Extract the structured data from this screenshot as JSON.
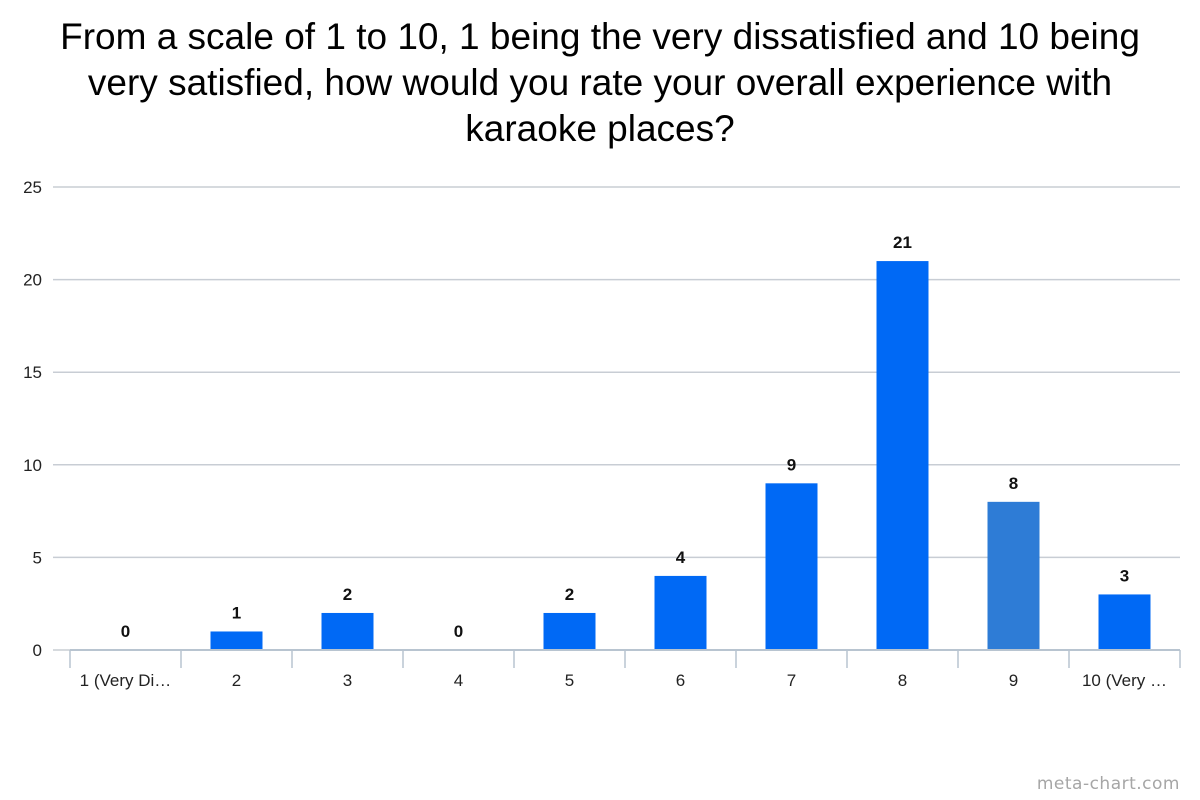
{
  "chart_data": {
    "type": "bar",
    "title": "From a scale of 1 to 10, 1 being the very dissatisfied and 10 being very satisfied, how would you rate your overall experience with karaoke places?",
    "categories": [
      "1 (Very Di…",
      "2",
      "3",
      "4",
      "5",
      "6",
      "7",
      "8",
      "9",
      "10 (Very …"
    ],
    "values": [
      0,
      1,
      2,
      0,
      2,
      4,
      9,
      21,
      8,
      3
    ],
    "data_labels": [
      "0",
      "1",
      "2",
      "0",
      "2",
      "4",
      "9",
      "21",
      "8",
      "3"
    ],
    "xlabel": "",
    "ylabel": "",
    "ylim": [
      0,
      25
    ],
    "yticks": [
      0,
      5,
      10,
      15,
      20,
      25
    ],
    "grid": true,
    "legend": "none",
    "colors": {
      "bar": "#0069f5",
      "highlight_bar": "#2e7cd6",
      "grid": "#c8cdd4",
      "axis": "#b8c4d0"
    },
    "highlight_index": 8
  },
  "watermark": "meta-chart.com"
}
